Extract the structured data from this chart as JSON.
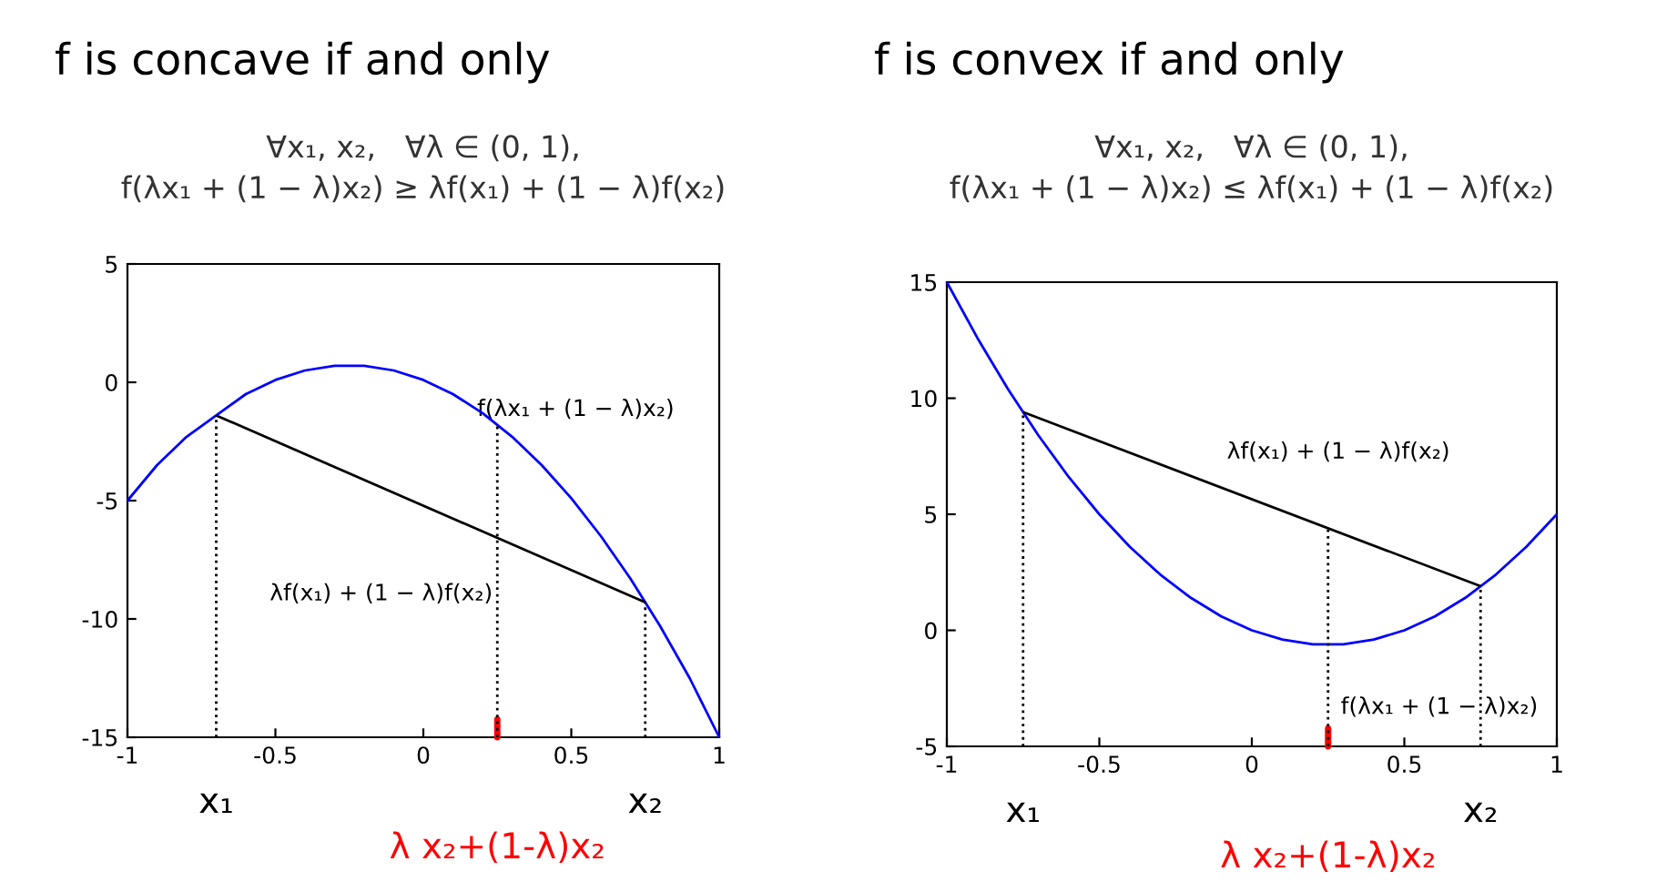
{
  "chart_data": [
    {
      "type": "line",
      "title": "f is concave if and only",
      "subtitle": "∀x₁, x₂,   ∀λ ∈ (0, 1),\nf(λx₁ + (1 − λ)x₂) ≥ λf(x₁) + (1 − λ)f(x₂)",
      "x": [
        -1,
        -0.9,
        -0.8,
        -0.7,
        -0.6,
        -0.5,
        -0.4,
        -0.3,
        -0.2,
        -0.1,
        0,
        0.1,
        0.2,
        0.3,
        0.4,
        0.5,
        0.6,
        0.7,
        0.8,
        0.9,
        1
      ],
      "series": [
        {
          "color": "#0000ff",
          "line_style": "solid",
          "values": [
            -5,
            -3.5,
            -2.3,
            -1.4,
            -0.5,
            0.1,
            0.5,
            0.7,
            0.7,
            0.5,
            0.1,
            -0.5,
            -1.3,
            -2.3,
            -3.5,
            -4.9,
            -6.5,
            -8.3,
            -10.3,
            -12.5,
            -15
          ]
        },
        {
          "color": "#000000",
          "line_style": "solid",
          "x": [
            -0.7,
            0.75
          ],
          "values": [
            -1.4,
            -9.3
          ]
        },
        {
          "color": "#000000",
          "line_style": "dotted",
          "x": [
            -0.7,
            -0.7
          ],
          "values": [
            -15,
            -1.4
          ]
        },
        {
          "color": "#000000",
          "line_style": "dotted",
          "x": [
            0.25,
            0.25
          ],
          "values": [
            -15,
            -1.8
          ]
        },
        {
          "color": "#000000",
          "line_style": "dotted",
          "x": [
            0.75,
            0.75
          ],
          "values": [
            -15,
            -9.3
          ]
        }
      ],
      "annotations": [
        {
          "text": "x₁",
          "x": -0.7,
          "y": -15
        },
        {
          "text": "x₂",
          "x": 0.75,
          "y": -15
        },
        {
          "text": "f(λx₁ + (1 − λ)x₂)",
          "x": 0.25,
          "y": -1.8
        },
        {
          "text": "λf(x₁) + (1 − λ)f(x₂)",
          "x": 0.25,
          "y": -6.6
        },
        {
          "text": "λ x₂+(1-λ)x₂",
          "x": 0.25,
          "y": -15
        }
      ],
      "xlim": [
        -1,
        1
      ],
      "ylim": [
        -15,
        5
      ],
      "xticks": [
        -1,
        -0.5,
        0,
        0.5,
        1
      ],
      "yticks": [
        -15,
        -10,
        -5,
        0,
        5
      ],
      "marker": "none"
    },
    {
      "type": "line",
      "title": "f is convex if and only",
      "subtitle": "∀x₁, x₂,   ∀λ ∈ (0, 1),\nf(λx₁ + (1 − λ)x₂) ≤ λf(x₁) + (1 − λ)f(x₂)",
      "x": [
        -1,
        -0.9,
        -0.8,
        -0.7,
        -0.6,
        -0.5,
        -0.4,
        -0.3,
        -0.2,
        -0.1,
        0,
        0.1,
        0.2,
        0.3,
        0.4,
        0.5,
        0.6,
        0.7,
        0.8,
        0.9,
        1
      ],
      "series": [
        {
          "color": "#0000ff",
          "line_style": "solid",
          "values": [
            15,
            12.6,
            10.4,
            8.4,
            6.6,
            5,
            3.6,
            2.4,
            1.4,
            0.6,
            0,
            -0.4,
            -0.6,
            -0.6,
            -0.4,
            0,
            0.6,
            1.4,
            2.4,
            3.6,
            5
          ]
        },
        {
          "color": "#000000",
          "line_style": "solid",
          "x": [
            -0.75,
            0.75
          ],
          "values": [
            9.4,
            1.9
          ]
        },
        {
          "color": "#000000",
          "line_style": "dotted",
          "x": [
            -0.75,
            -0.75
          ],
          "values": [
            -5,
            9.4
          ]
        },
        {
          "color": "#000000",
          "line_style": "dotted",
          "x": [
            0.25,
            0.25
          ],
          "values": [
            -5,
            4.4
          ]
        },
        {
          "color": "#000000",
          "line_style": "dotted",
          "x": [
            0.75,
            0.75
          ],
          "values": [
            -5,
            1.9
          ]
        }
      ],
      "annotations": [
        {
          "text": "x₁",
          "x": -0.75,
          "y": -5
        },
        {
          "text": "x₂",
          "x": 0.75,
          "y": -5
        },
        {
          "text": "λf(x₁) + (1 − λ)f(x₂)",
          "x": 0.25,
          "y": 4.4
        },
        {
          "text": "f(λx₁ + (1 − λ)x₂)",
          "x": 0.25,
          "y": -0.6
        },
        {
          "text": "λ x₂+(1-λ)x₂",
          "x": 0.25,
          "y": -5
        }
      ],
      "xlim": [
        -1,
        1
      ],
      "ylim": [
        -5,
        15
      ],
      "xticks": [
        -1,
        -0.5,
        0,
        0.5,
        1
      ],
      "yticks": [
        -5,
        0,
        5,
        10,
        15
      ],
      "marker": "none"
    }
  ]
}
